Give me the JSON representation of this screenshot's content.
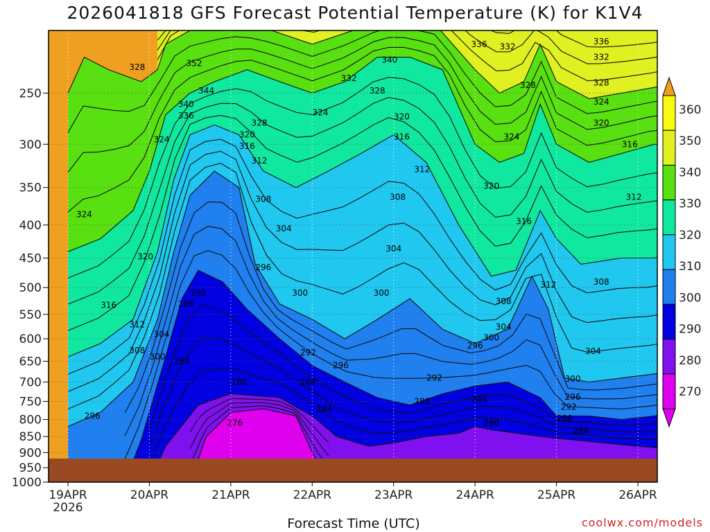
{
  "chart_data": {
    "type": "heatmap",
    "title": "2026041818 GFS Forecast Potential Temperature (K) for K1V4",
    "xlabel": "Forecast Time (UTC)",
    "ylabel": "",
    "credit": "coolwx.com/models",
    "x_ticks": [
      "19APR",
      "20APR",
      "21APR",
      "22APR",
      "23APR",
      "24APR",
      "25APR",
      "26APR"
    ],
    "x_year": "2026",
    "y_ticks": [
      "250",
      "300",
      "350",
      "400",
      "450",
      "500",
      "550",
      "600",
      "650",
      "700",
      "750",
      "800",
      "850",
      "900",
      "950",
      "1000"
    ],
    "y_values": [
      250,
      300,
      350,
      400,
      450,
      500,
      550,
      600,
      650,
      700,
      750,
      800,
      850,
      900,
      950,
      1000
    ],
    "ylim": [
      200,
      1000
    ],
    "xlim_days": [
      0,
      7.5
    ],
    "colorbar": {
      "levels": [
        "360",
        "350",
        "340",
        "330",
        "320",
        "310",
        "300",
        "290",
        "280",
        "270"
      ],
      "colors": [
        "#f0a020",
        "#fafa10",
        "#e0f020",
        "#58e010",
        "#10e8a0",
        "#20c8f0",
        "#2080f0",
        "#0000e0",
        "#8010f0",
        "#e000f0"
      ]
    },
    "isentropes": [
      {
        "value": 276,
        "color": "#e010f0",
        "points": [
          [
            1.5,
            1000
          ],
          [
            1.7,
            850
          ],
          [
            2.0,
            780
          ],
          [
            2.4,
            770
          ],
          [
            2.8,
            790
          ],
          [
            3.0,
            900
          ],
          [
            3.2,
            1000
          ]
        ]
      },
      {
        "value": 280,
        "color": "#b010f0",
        "points": [
          [
            1.0,
            1000
          ],
          [
            1.2,
            880
          ],
          [
            1.6,
            760
          ],
          [
            2.0,
            730
          ],
          [
            2.6,
            740
          ],
          [
            3.0,
            790
          ],
          [
            3.3,
            850
          ],
          [
            3.7,
            880
          ],
          [
            4.0,
            870
          ],
          [
            4.4,
            850
          ],
          [
            4.8,
            840
          ],
          [
            5.0,
            820
          ],
          [
            5.2,
            830
          ],
          [
            5.8,
            850
          ],
          [
            6.2,
            860
          ],
          [
            6.6,
            870
          ],
          [
            7.0,
            880
          ],
          [
            7.5,
            890
          ]
        ]
      },
      {
        "value": 290,
        "color": "#8010f0",
        "points": [
          [
            0.7,
            1000
          ],
          [
            0.9,
            860
          ],
          [
            1.2,
            640
          ],
          [
            1.4,
            520
          ],
          [
            1.6,
            470
          ],
          [
            1.9,
            490
          ],
          [
            2.2,
            540
          ],
          [
            2.6,
            600
          ],
          [
            3.0,
            660
          ],
          [
            3.4,
            700
          ],
          [
            3.8,
            740
          ],
          [
            4.2,
            760
          ],
          [
            4.6,
            730
          ],
          [
            5.0,
            710
          ],
          [
            5.4,
            700
          ],
          [
            5.8,
            740
          ],
          [
            6.0,
            790
          ],
          [
            6.4,
            790
          ],
          [
            6.8,
            800
          ],
          [
            7.2,
            790
          ],
          [
            7.5,
            780
          ]
        ]
      },
      {
        "value": 300,
        "color": "#0000e0",
        "points": [
          [
            0.0,
            820
          ],
          [
            0.4,
            780
          ],
          [
            0.8,
            700
          ],
          [
            1.1,
            560
          ],
          [
            1.3,
            440
          ],
          [
            1.5,
            360
          ],
          [
            1.8,
            330
          ],
          [
            2.1,
            350
          ],
          [
            2.3,
            460
          ],
          [
            2.6,
            530
          ],
          [
            3.0,
            560
          ],
          [
            3.4,
            600
          ],
          [
            3.8,
            560
          ],
          [
            4.2,
            520
          ],
          [
            4.6,
            580
          ],
          [
            5.0,
            610
          ],
          [
            5.4,
            580
          ],
          [
            5.7,
            480
          ],
          [
            5.9,
            540
          ],
          [
            6.1,
            690
          ],
          [
            6.4,
            700
          ],
          [
            6.8,
            690
          ],
          [
            7.2,
            680
          ],
          [
            7.5,
            670
          ]
        ]
      },
      {
        "value": 310,
        "color": "#2080f0",
        "points": [
          [
            0.0,
            640
          ],
          [
            0.4,
            610
          ],
          [
            0.8,
            560
          ],
          [
            1.1,
            440
          ],
          [
            1.3,
            340
          ],
          [
            1.5,
            290
          ],
          [
            1.8,
            280
          ],
          [
            2.1,
            290
          ],
          [
            2.4,
            330
          ],
          [
            2.8,
            350
          ],
          [
            3.2,
            330
          ],
          [
            3.6,
            310
          ],
          [
            4.0,
            290
          ],
          [
            4.4,
            320
          ],
          [
            4.8,
            400
          ],
          [
            5.2,
            480
          ],
          [
            5.5,
            470
          ],
          [
            5.8,
            380
          ],
          [
            6.0,
            420
          ],
          [
            6.3,
            460
          ],
          [
            6.8,
            450
          ],
          [
            7.2,
            450
          ],
          [
            7.5,
            440
          ]
        ]
      },
      {
        "value": 320,
        "color": "#20c8f0",
        "points": [
          [
            0.0,
            440
          ],
          [
            0.4,
            420
          ],
          [
            0.8,
            380
          ],
          [
            1.0,
            330
          ],
          [
            1.2,
            270
          ],
          [
            1.5,
            250
          ],
          [
            1.8,
            240
          ],
          [
            2.2,
            230
          ],
          [
            2.6,
            240
          ],
          [
            3.0,
            250
          ],
          [
            3.4,
            240
          ],
          [
            3.8,
            220
          ],
          [
            4.2,
            220
          ],
          [
            4.6,
            230
          ],
          [
            5.0,
            300
          ],
          [
            5.3,
            320
          ],
          [
            5.6,
            310
          ],
          [
            5.8,
            260
          ],
          [
            6.0,
            300
          ],
          [
            6.4,
            320
          ],
          [
            6.8,
            310
          ],
          [
            7.2,
            300
          ],
          [
            7.5,
            300
          ]
        ]
      },
      {
        "value": 330,
        "color": "#10e8a0",
        "points": [
          [
            0.0,
            250
          ],
          [
            0.2,
            220
          ],
          [
            0.5,
            230
          ],
          [
            0.9,
            240
          ],
          [
            1.1,
            230
          ],
          [
            1.2,
            210
          ],
          [
            1.5,
            200
          ],
          [
            2.0,
            195
          ],
          [
            2.5,
            200
          ],
          [
            3.0,
            210
          ],
          [
            3.5,
            200
          ],
          [
            4.0,
            190
          ],
          [
            4.5,
            195
          ],
          [
            5.0,
            230
          ],
          [
            5.3,
            250
          ],
          [
            5.6,
            240
          ],
          [
            5.8,
            210
          ],
          [
            6.0,
            240
          ],
          [
            6.4,
            255
          ],
          [
            6.8,
            250
          ],
          [
            7.2,
            245
          ],
          [
            7.5,
            240
          ]
        ]
      },
      {
        "value": 340,
        "color": "#58e010",
        "points": [
          [
            1.1,
            200
          ],
          [
            1.3,
            190
          ],
          [
            1.7,
            175
          ],
          [
            2.2,
            170
          ],
          [
            2.8,
            180
          ],
          [
            3.4,
            175
          ],
          [
            4.0,
            170
          ],
          [
            4.6,
            172
          ],
          [
            5.0,
            185
          ],
          [
            5.4,
            190
          ],
          [
            5.7,
            180
          ],
          [
            6.0,
            190
          ],
          [
            6.4,
            200
          ],
          [
            6.8,
            200
          ],
          [
            7.2,
            198
          ],
          [
            7.5,
            195
          ]
        ]
      },
      {
        "value": 350,
        "color": "#e0f020",
        "points": [
          [
            1.1,
            180
          ],
          [
            1.4,
            172
          ],
          [
            1.9,
            168
          ],
          [
            2.5,
            166
          ],
          [
            3.0,
            168
          ]
        ]
      }
    ],
    "contour_labels": [
      {
        "text": "328",
        "x": 0.85,
        "y": 228
      },
      {
        "text": "352",
        "x": 1.55,
        "y": 225
      },
      {
        "text": "344",
        "x": 1.7,
        "y": 248
      },
      {
        "text": "340",
        "x": 1.45,
        "y": 260
      },
      {
        "text": "336",
        "x": 1.45,
        "y": 271
      },
      {
        "text": "324",
        "x": 1.15,
        "y": 295
      },
      {
        "text": "324",
        "x": 0.2,
        "y": 385
      },
      {
        "text": "320",
        "x": 0.95,
        "y": 448
      },
      {
        "text": "316",
        "x": 0.5,
        "y": 532
      },
      {
        "text": "312",
        "x": 0.85,
        "y": 570
      },
      {
        "text": "308",
        "x": 0.85,
        "y": 626
      },
      {
        "text": "296",
        "x": 0.3,
        "y": 790
      },
      {
        "text": "304",
        "x": 1.15,
        "y": 590
      },
      {
        "text": "300",
        "x": 1.1,
        "y": 640
      },
      {
        "text": "288",
        "x": 1.45,
        "y": 530
      },
      {
        "text": "292",
        "x": 1.6,
        "y": 510
      },
      {
        "text": "284",
        "x": 1.4,
        "y": 650
      },
      {
        "text": "280",
        "x": 2.1,
        "y": 700
      },
      {
        "text": "276",
        "x": 2.05,
        "y": 810
      },
      {
        "text": "296",
        "x": 2.4,
        "y": 465
      },
      {
        "text": "300",
        "x": 2.85,
        "y": 510
      },
      {
        "text": "292",
        "x": 2.95,
        "y": 630
      },
      {
        "text": "288",
        "x": 2.95,
        "y": 700
      },
      {
        "text": "284",
        "x": 3.15,
        "y": 770
      },
      {
        "text": "296",
        "x": 3.35,
        "y": 660
      },
      {
        "text": "304",
        "x": 2.65,
        "y": 405
      },
      {
        "text": "308",
        "x": 2.4,
        "y": 365
      },
      {
        "text": "312",
        "x": 2.35,
        "y": 318
      },
      {
        "text": "316",
        "x": 2.2,
        "y": 302
      },
      {
        "text": "320",
        "x": 2.2,
        "y": 290
      },
      {
        "text": "328",
        "x": 2.35,
        "y": 278
      },
      {
        "text": "324",
        "x": 3.1,
        "y": 268
      },
      {
        "text": "332",
        "x": 3.45,
        "y": 237
      },
      {
        "text": "340",
        "x": 3.95,
        "y": 222
      },
      {
        "text": "328",
        "x": 3.8,
        "y": 248
      },
      {
        "text": "320",
        "x": 4.1,
        "y": 272
      },
      {
        "text": "316",
        "x": 4.1,
        "y": 292
      },
      {
        "text": "312",
        "x": 4.35,
        "y": 328
      },
      {
        "text": "308",
        "x": 4.05,
        "y": 362
      },
      {
        "text": "304",
        "x": 4.0,
        "y": 435
      },
      {
        "text": "300",
        "x": 3.85,
        "y": 510
      },
      {
        "text": "292",
        "x": 4.5,
        "y": 690
      },
      {
        "text": "288",
        "x": 4.35,
        "y": 750
      },
      {
        "text": "284",
        "x": 5.05,
        "y": 745
      },
      {
        "text": "280",
        "x": 5.2,
        "y": 810
      },
      {
        "text": "296",
        "x": 5.0,
        "y": 615
      },
      {
        "text": "300",
        "x": 5.2,
        "y": 598
      },
      {
        "text": "304",
        "x": 5.35,
        "y": 575
      },
      {
        "text": "308",
        "x": 5.35,
        "y": 525
      },
      {
        "text": "320",
        "x": 5.2,
        "y": 348
      },
      {
        "text": "316",
        "x": 5.6,
        "y": 395
      },
      {
        "text": "312",
        "x": 5.9,
        "y": 495
      },
      {
        "text": "324",
        "x": 5.45,
        "y": 292
      },
      {
        "text": "328",
        "x": 5.65,
        "y": 243
      },
      {
        "text": "332",
        "x": 5.4,
        "y": 212
      },
      {
        "text": "336",
        "x": 5.05,
        "y": 210
      },
      {
        "text": "336",
        "x": 6.55,
        "y": 208
      },
      {
        "text": "332",
        "x": 6.55,
        "y": 220
      },
      {
        "text": "328",
        "x": 6.55,
        "y": 241
      },
      {
        "text": "324",
        "x": 6.55,
        "y": 258
      },
      {
        "text": "320",
        "x": 6.55,
        "y": 278
      },
      {
        "text": "316",
        "x": 6.9,
        "y": 300
      },
      {
        "text": "312",
        "x": 6.95,
        "y": 362
      },
      {
        "text": "308",
        "x": 6.55,
        "y": 490
      },
      {
        "text": "304",
        "x": 6.45,
        "y": 627
      },
      {
        "text": "300",
        "x": 6.2,
        "y": 692
      },
      {
        "text": "296",
        "x": 6.2,
        "y": 738
      },
      {
        "text": "292",
        "x": 6.15,
        "y": 765
      },
      {
        "text": "288",
        "x": 6.1,
        "y": 797
      },
      {
        "text": "284",
        "x": 6.3,
        "y": 833
      }
    ]
  }
}
